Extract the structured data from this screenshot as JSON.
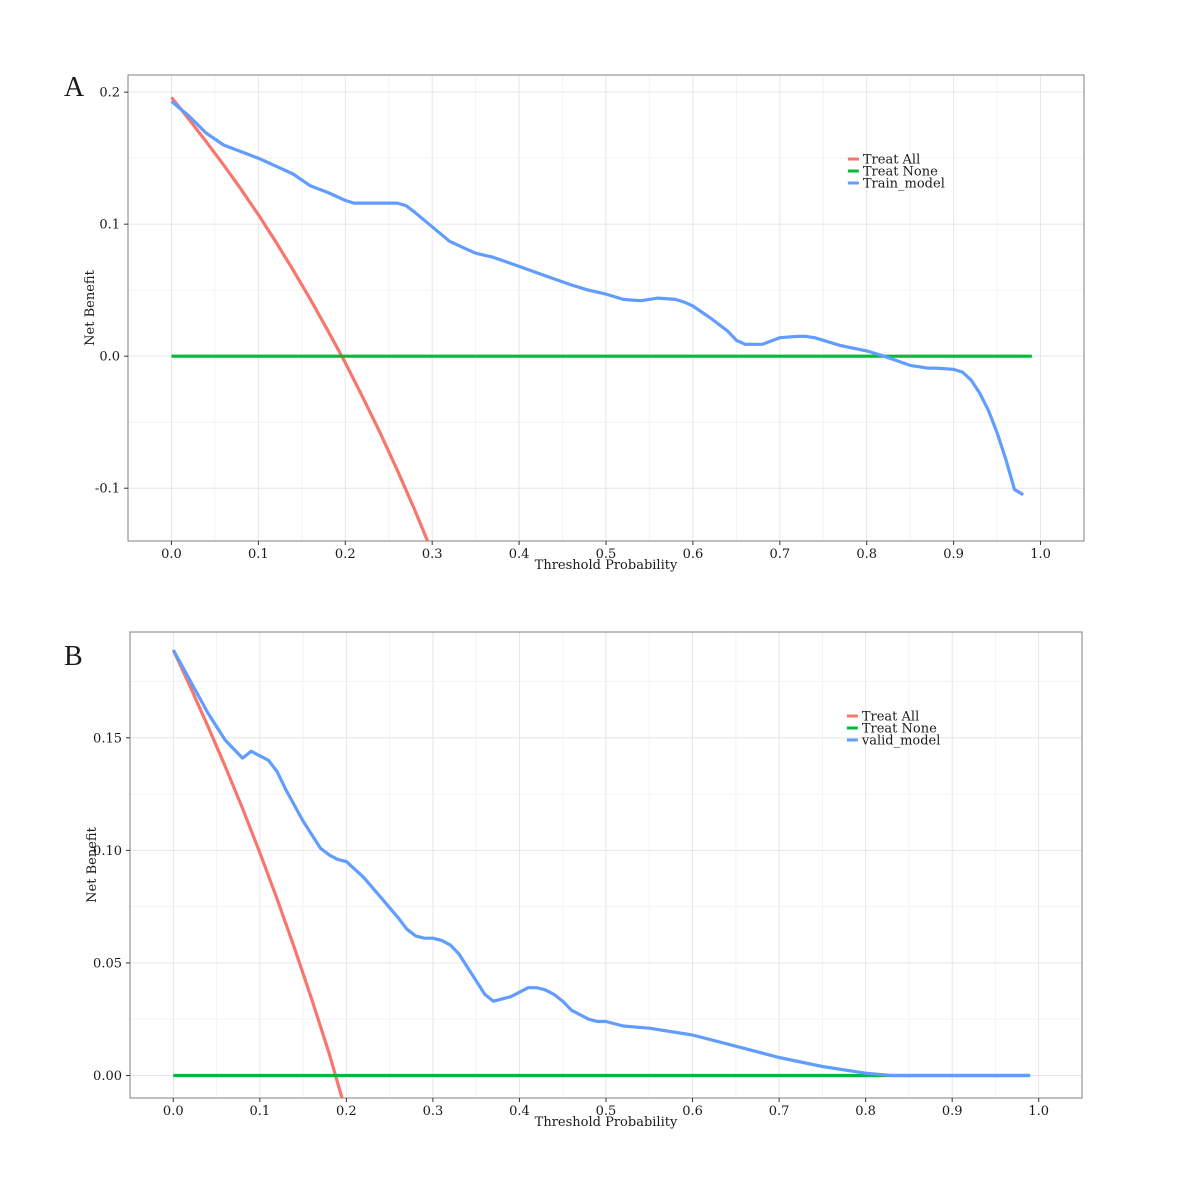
{
  "chart_data": [
    {
      "type": "line",
      "panel_label": "A",
      "xlabel": "Threshold Probability",
      "ylabel": "Net Benefit",
      "xlim": [
        -0.05,
        1.05
      ],
      "ylim": [
        -0.14,
        0.213
      ],
      "x_ticks": [
        0.0,
        0.1,
        0.2,
        0.3,
        0.4,
        0.5,
        0.6,
        0.7,
        0.8,
        0.9,
        1.0
      ],
      "x_tick_labels": [
        "0.0",
        "0.1",
        "0.2",
        "0.3",
        "0.4",
        "0.5",
        "0.6",
        "0.7",
        "0.8",
        "0.9",
        "1.0"
      ],
      "y_ticks": [
        -0.1,
        0.0,
        0.1,
        0.2
      ],
      "y_tick_labels": [
        "-0.1",
        "0.0",
        "0.1",
        "0.2"
      ],
      "grid": true,
      "legend_position": "top-right",
      "series": [
        {
          "name": "Treat All",
          "color": "#F8766D",
          "prevalence": 0.196,
          "x": [
            0.0,
            0.02,
            0.04,
            0.06,
            0.08,
            0.1,
            0.12,
            0.14,
            0.16,
            0.18,
            0.2,
            0.22,
            0.24,
            0.26,
            0.28,
            0.295
          ],
          "y": [
            0.196,
            0.1796,
            0.1625,
            0.1449,
            0.1265,
            0.1071,
            0.0868,
            0.0653,
            0.0429,
            0.0193,
            -0.005,
            -0.031,
            -0.0579,
            -0.0865,
            -0.1166,
            -0.1404
          ]
        },
        {
          "name": "Treat None",
          "color": "#00BA38",
          "x": [
            0.0,
            0.99
          ],
          "y": [
            0.0,
            0.0
          ]
        },
        {
          "name": "Train_model",
          "color": "#619CFF",
          "x": [
            0.0,
            0.02,
            0.04,
            0.06,
            0.08,
            0.1,
            0.12,
            0.14,
            0.16,
            0.18,
            0.2,
            0.21,
            0.22,
            0.24,
            0.26,
            0.27,
            0.28,
            0.3,
            0.32,
            0.34,
            0.35,
            0.37,
            0.4,
            0.43,
            0.46,
            0.48,
            0.5,
            0.52,
            0.54,
            0.56,
            0.58,
            0.59,
            0.6,
            0.62,
            0.64,
            0.65,
            0.66,
            0.68,
            0.7,
            0.72,
            0.73,
            0.74,
            0.75,
            0.77,
            0.8,
            0.82,
            0.85,
            0.87,
            0.88,
            0.9,
            0.91,
            0.92,
            0.93,
            0.94,
            0.95,
            0.96,
            0.97,
            0.98
          ],
          "y": [
            0.193,
            0.182,
            0.169,
            0.16,
            0.155,
            0.15,
            0.144,
            0.138,
            0.129,
            0.124,
            0.118,
            0.116,
            0.116,
            0.116,
            0.116,
            0.114,
            0.109,
            0.098,
            0.087,
            0.081,
            0.078,
            0.075,
            0.068,
            0.061,
            0.054,
            0.05,
            0.047,
            0.043,
            0.042,
            0.044,
            0.043,
            0.041,
            0.038,
            0.029,
            0.019,
            0.012,
            0.009,
            0.009,
            0.014,
            0.015,
            0.015,
            0.014,
            0.012,
            0.008,
            0.004,
            0.0,
            -0.007,
            -0.009,
            -0.009,
            -0.01,
            -0.012,
            -0.018,
            -0.028,
            -0.041,
            -0.058,
            -0.078,
            -0.101,
            -0.105
          ]
        }
      ]
    },
    {
      "type": "line",
      "panel_label": "B",
      "xlabel": "Threshold Probability",
      "ylabel": "Net Benefit",
      "xlim": [
        -0.05,
        1.05
      ],
      "ylim": [
        -0.01,
        0.197
      ],
      "x_ticks": [
        0.0,
        0.1,
        0.2,
        0.3,
        0.4,
        0.5,
        0.6,
        0.7,
        0.8,
        0.9,
        1.0
      ],
      "x_tick_labels": [
        "0.0",
        "0.1",
        "0.2",
        "0.3",
        "0.4",
        "0.5",
        "0.6",
        "0.7",
        "0.8",
        "0.9",
        "1.0"
      ],
      "y_ticks": [
        0.0,
        0.05,
        0.1,
        0.15
      ],
      "y_tick_labels": [
        "0.00",
        "0.05",
        "0.10",
        "0.15"
      ],
      "grid": true,
      "legend_position": "top-right",
      "series": [
        {
          "name": "Treat All",
          "color": "#F8766D",
          "prevalence": 0.189,
          "x": [
            0.0,
            0.02,
            0.04,
            0.06,
            0.08,
            0.1,
            0.12,
            0.14,
            0.16,
            0.18,
            0.195
          ],
          "y": [
            0.189,
            0.1724,
            0.1551,
            0.1373,
            0.1187,
            0.099,
            0.0784,
            0.0567,
            0.0339,
            0.0099,
            -0.01
          ]
        },
        {
          "name": "Treat None",
          "color": "#00BA38",
          "x": [
            0.0,
            0.99
          ],
          "y": [
            0.0,
            0.0
          ]
        },
        {
          "name": "valid_model",
          "color": "#619CFF",
          "x": [
            0.0,
            0.02,
            0.04,
            0.06,
            0.08,
            0.09,
            0.1,
            0.11,
            0.12,
            0.13,
            0.15,
            0.17,
            0.18,
            0.19,
            0.2,
            0.22,
            0.24,
            0.26,
            0.27,
            0.28,
            0.29,
            0.3,
            0.31,
            0.32,
            0.33,
            0.34,
            0.35,
            0.36,
            0.37,
            0.38,
            0.39,
            0.4,
            0.41,
            0.42,
            0.43,
            0.44,
            0.45,
            0.46,
            0.47,
            0.48,
            0.49,
            0.5,
            0.52,
            0.55,
            0.6,
            0.65,
            0.7,
            0.75,
            0.8,
            0.83,
            0.85,
            0.9,
            0.95,
            0.99
          ],
          "y": [
            0.189,
            0.175,
            0.161,
            0.149,
            0.141,
            0.144,
            0.142,
            0.14,
            0.135,
            0.127,
            0.113,
            0.101,
            0.098,
            0.096,
            0.095,
            0.088,
            0.079,
            0.07,
            0.065,
            0.062,
            0.061,
            0.061,
            0.06,
            0.058,
            0.054,
            0.048,
            0.042,
            0.036,
            0.033,
            0.034,
            0.035,
            0.037,
            0.039,
            0.039,
            0.038,
            0.036,
            0.033,
            0.029,
            0.027,
            0.025,
            0.024,
            0.024,
            0.022,
            0.021,
            0.018,
            0.013,
            0.008,
            0.004,
            0.001,
            0.0,
            0.0,
            0.0,
            0.0,
            0.0
          ]
        }
      ]
    }
  ]
}
